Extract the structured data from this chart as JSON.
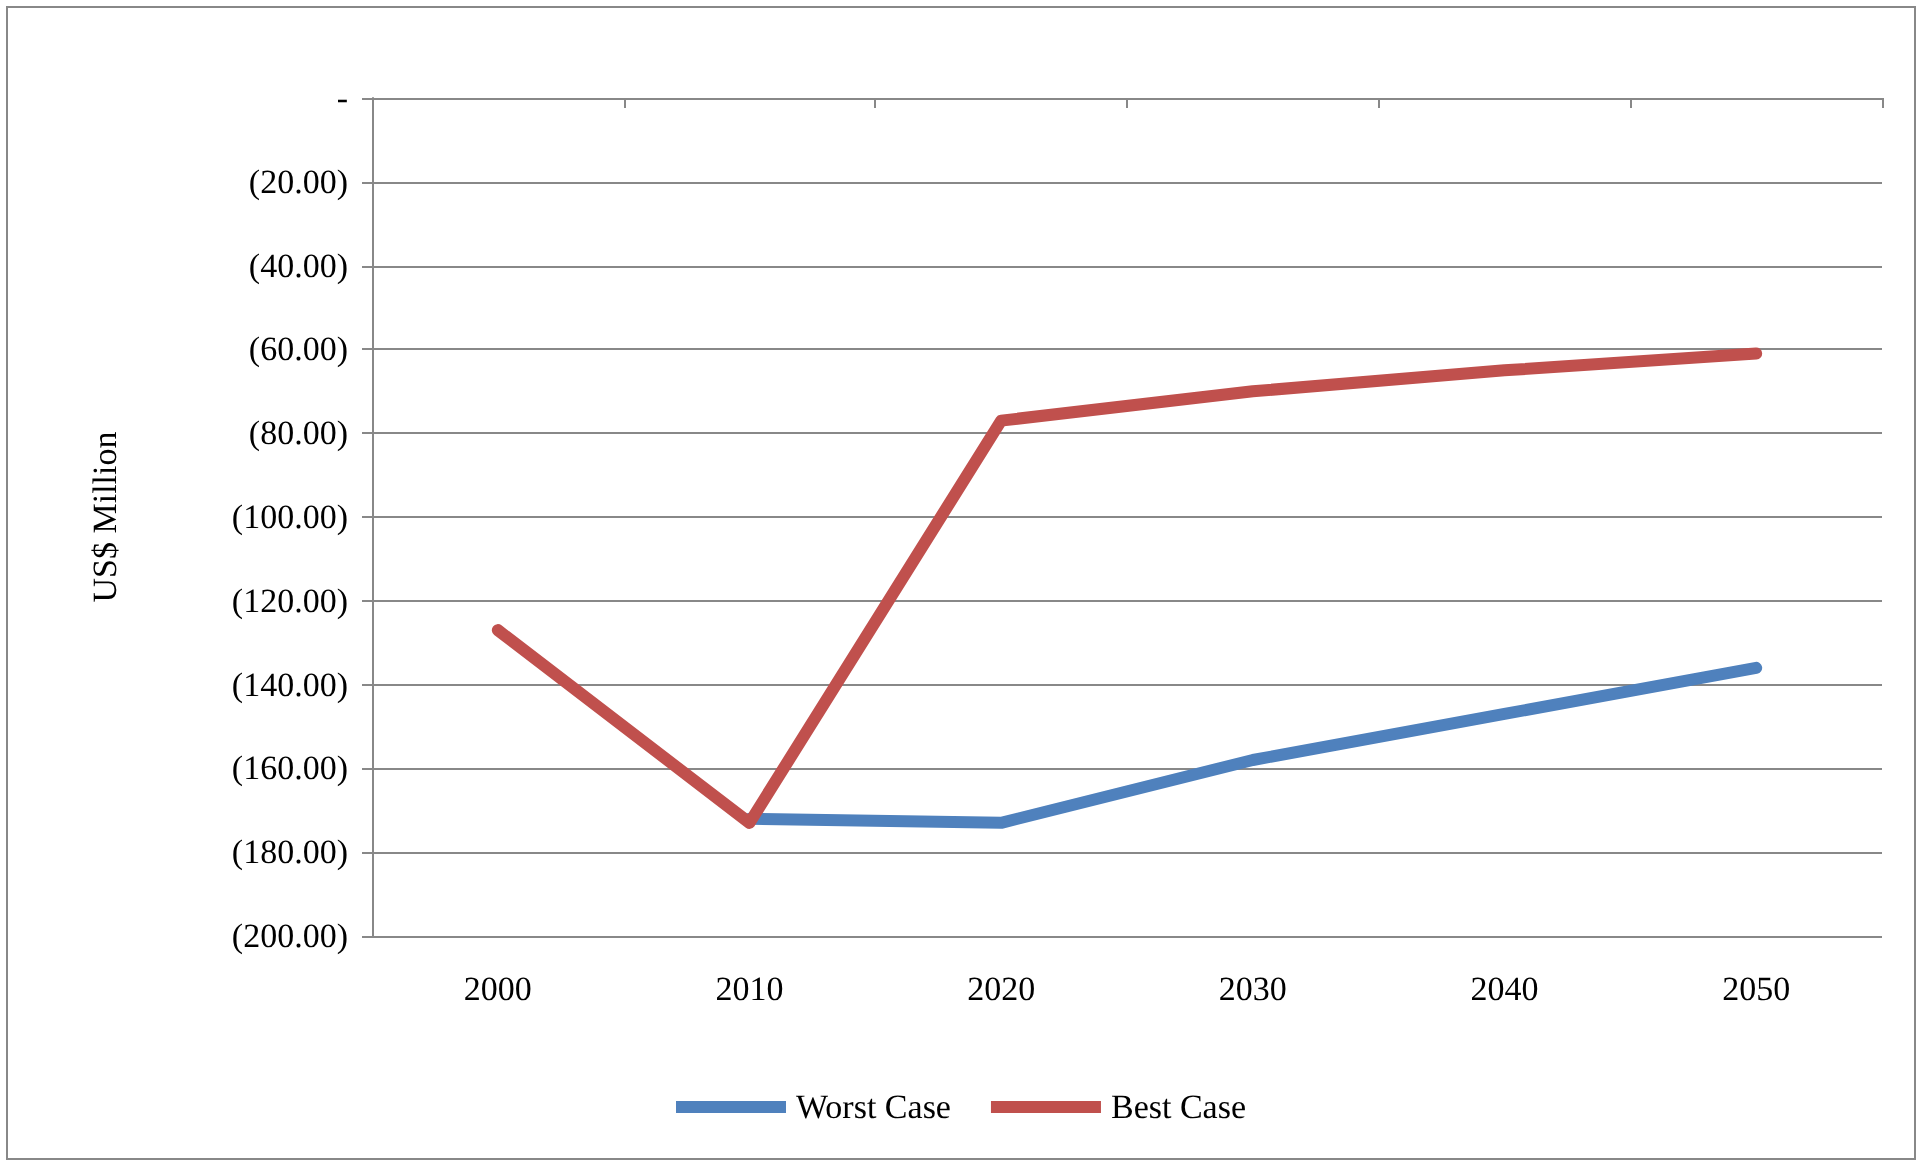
{
  "chart_data": {
    "type": "line",
    "ylabel": "US$ Million",
    "categories": [
      "2000",
      "2010",
      "2020",
      "2030",
      "2040",
      "2050"
    ],
    "series": [
      {
        "name": "Worst Case",
        "color": "#4f81bd",
        "values": [
          null,
          -172,
          -173,
          -158,
          -147,
          -136
        ]
      },
      {
        "name": "Best Case",
        "color": "#c0504d",
        "values": [
          -127,
          -173,
          -77,
          -70,
          -65,
          -61
        ]
      }
    ],
    "ylim": [
      -200,
      0
    ],
    "yticks": [
      {
        "value": -200,
        "label": "(200.00)"
      },
      {
        "value": -180,
        "label": "(180.00)"
      },
      {
        "value": -160,
        "label": "(160.00)"
      },
      {
        "value": -140,
        "label": "(140.00)"
      },
      {
        "value": -120,
        "label": "(120.00)"
      },
      {
        "value": -100,
        "label": "(100.00)"
      },
      {
        "value": -80,
        "label": "(80.00)"
      },
      {
        "value": -60,
        "label": "(60.00)"
      },
      {
        "value": -40,
        "label": "(40.00)"
      },
      {
        "value": -20,
        "label": "(20.00)"
      },
      {
        "value": 0,
        "label": "-"
      }
    ],
    "grid": "y",
    "legend": "bottom",
    "marker": "none",
    "line_style": "solid"
  }
}
